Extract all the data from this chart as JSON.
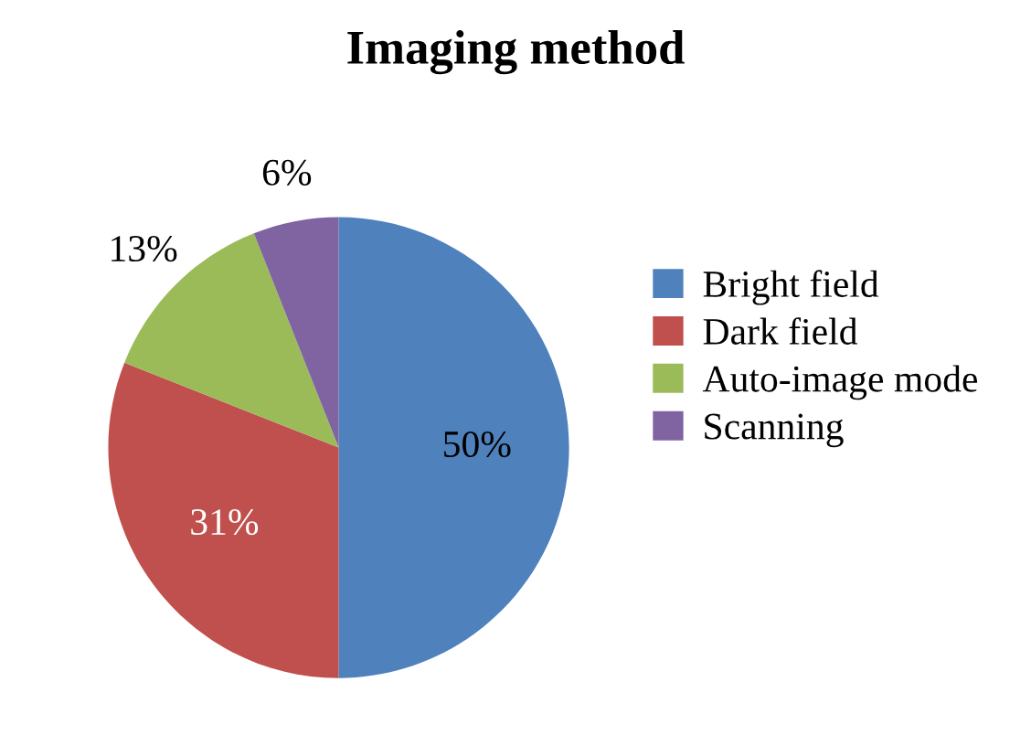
{
  "chart_data": {
    "type": "pie",
    "title": "Imaging method",
    "categories": [
      "Bright field",
      "Dark field",
      "Auto-image mode",
      "Scanning"
    ],
    "values": [
      50,
      31,
      13,
      6
    ],
    "colors": [
      "#4f81bd",
      "#c0504d",
      "#9bbb59",
      "#8064a2"
    ],
    "value_labels": [
      "50%",
      "31%",
      "13%",
      "6%"
    ],
    "legend": "right"
  }
}
